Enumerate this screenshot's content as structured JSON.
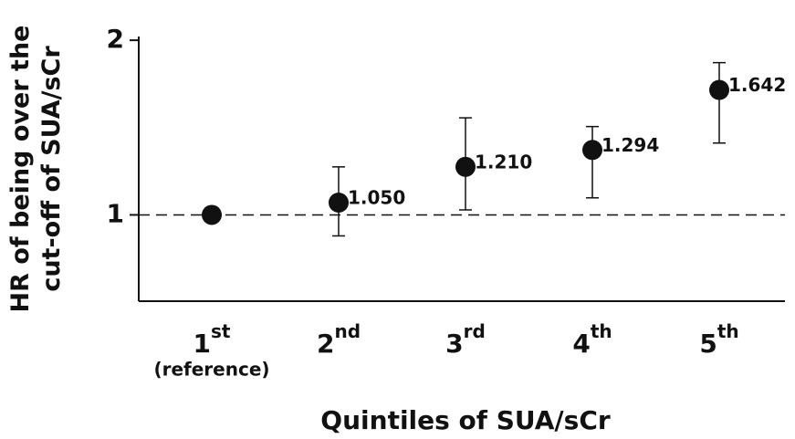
{
  "chart_data": {
    "type": "errorpoint",
    "y_label": [
      "HR of being over the",
      "cut-off of SUA/sCr"
    ],
    "x_label": "Quintiles of SUA/sCr",
    "categories": [
      {
        "base": "1",
        "sup": "st",
        "note": "(reference)"
      },
      {
        "base": "2",
        "sup": "nd"
      },
      {
        "base": "3",
        "sup": "rd"
      },
      {
        "base": "4",
        "sup": "th"
      },
      {
        "base": "5",
        "sup": "th"
      }
    ],
    "values": [
      1,
      1.05,
      1.21,
      1.294,
      1.642
    ],
    "value_labels": [
      null,
      "1.050",
      "1.210",
      "1.294",
      "1.642"
    ],
    "lower": [
      null,
      0.92,
      1.02,
      1.07,
      1.33
    ],
    "upper": [
      null,
      1.21,
      1.47,
      1.42,
      1.83
    ],
    "color": "#111111",
    "log_y": true,
    "ylim": [
      0.71,
      2.03
    ],
    "yticks": [
      1,
      2
    ],
    "reference_line": 1
  }
}
